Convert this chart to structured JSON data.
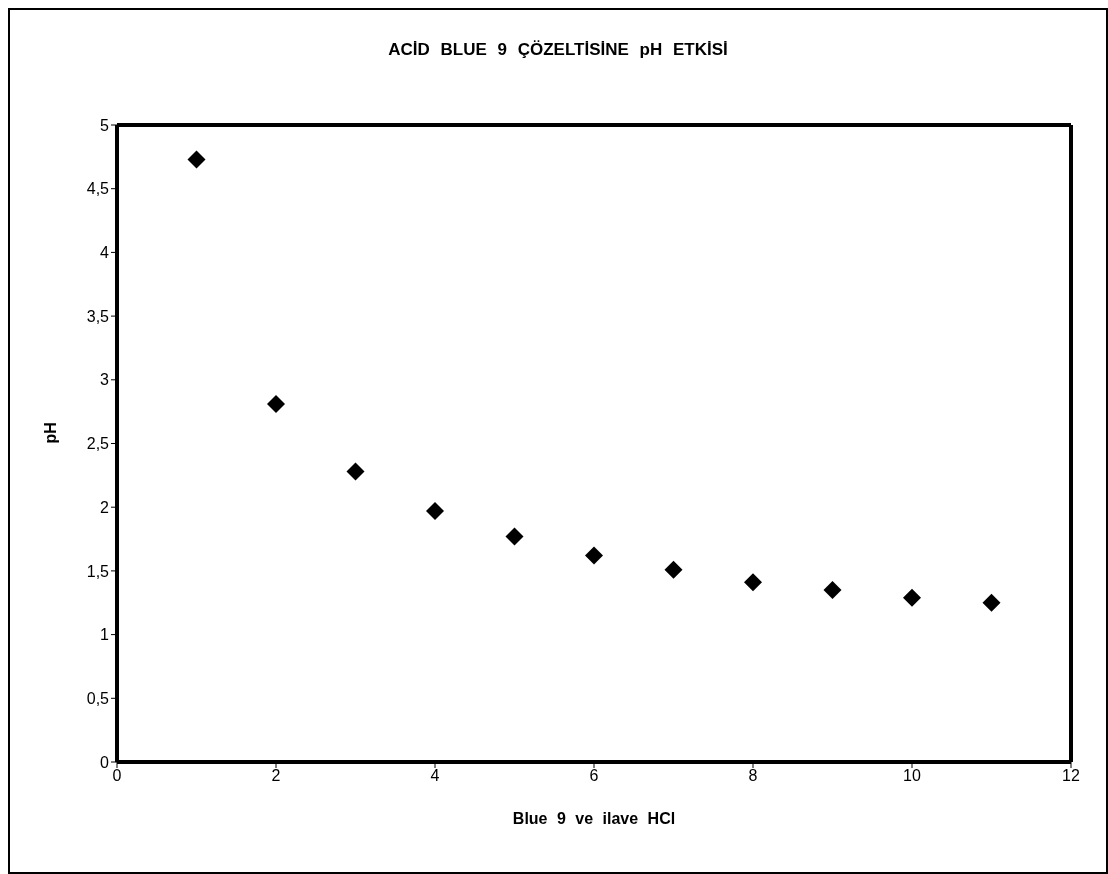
{
  "chart_data": {
    "type": "scatter",
    "title": "ACİD BLUE 9 ÇÖZELTİSİNE pH ETKİSİ",
    "xlabel": "Blue 9 ve ilave HCl",
    "ylabel": "pH",
    "x": [
      1,
      2,
      3,
      4,
      5,
      6,
      7,
      8,
      9,
      10,
      11
    ],
    "series": [
      {
        "color": "#000000",
        "values": [
          4.73,
          2.81,
          2.28,
          1.97,
          1.77,
          1.62,
          1.51,
          1.41,
          1.35,
          1.29,
          1.25
        ]
      }
    ],
    "xlim": [
      0,
      12
    ],
    "xticks": [
      0,
      2,
      4,
      6,
      8,
      10,
      12
    ],
    "ylim": [
      0,
      5
    ],
    "yticks": [
      0,
      {
        "value": 0.5,
        "label": "0,5"
      },
      1,
      {
        "value": 1.5,
        "label": "1,5"
      },
      2,
      {
        "value": 2.5,
        "label": "2,5"
      },
      3,
      {
        "value": 3.5,
        "label": "3,5"
      },
      4,
      {
        "value": 4.5,
        "label": "4,5"
      },
      5
    ],
    "marker": "diamond",
    "grid": false
  }
}
